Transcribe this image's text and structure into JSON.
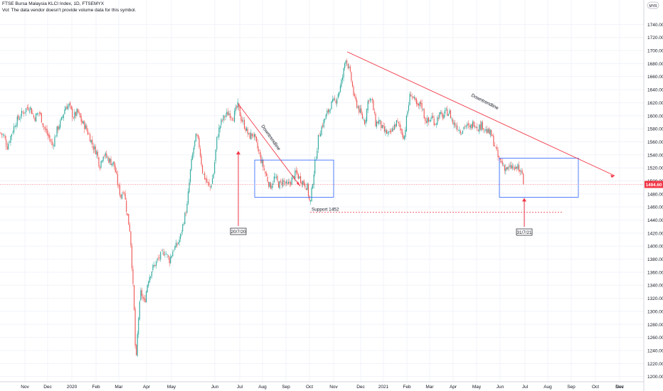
{
  "header": {
    "title": "FTSE Bursa Malaysia KLCI Index, 1D, FTSEMYX",
    "vol_note": "Vol: The data vendor doesn't provide volume data for this symbol."
  },
  "currency_badge": "MYR",
  "colors": {
    "up": "#26a69a",
    "down": "#ef5350",
    "drawing_red": "#f23645",
    "box_blue": "#2962ff",
    "price_line": "#f23645",
    "axis_text": "#131722",
    "grid": "#f0f3fa"
  },
  "chart_data": {
    "type": "candlestick",
    "instrument": "FTSE Bursa Malaysia KLCI Index",
    "interval": "1D",
    "y_axis": {
      "ylim": [
        1192,
        1760
      ],
      "ticks": [
        1200,
        1220,
        1240,
        1260,
        1280,
        1300,
        1320,
        1340,
        1360,
        1380,
        1400,
        1420,
        1440,
        1460,
        1480,
        1500,
        1520,
        1540,
        1560,
        1580,
        1600,
        1620,
        1640,
        1660,
        1680,
        1700,
        1720,
        1740
      ]
    },
    "x_axis": {
      "ticks": [
        "Nov",
        "Dec",
        "2020",
        "Feb",
        "Mar",
        "Apr",
        "May",
        "Jun",
        "Jul",
        "Aug",
        "Sep",
        "Oct",
        "Nov",
        "Dec",
        "2021",
        "Feb",
        "Mar",
        "Apr",
        "May",
        "Jun",
        "Jul",
        "Aug",
        "Sep",
        "Oct",
        "Nov",
        "Dec"
      ]
    },
    "last_price": "1494.60",
    "price_path": [
      [
        0,
        1574
      ],
      [
        6,
        1568
      ],
      [
        10,
        1552
      ],
      [
        16,
        1572
      ],
      [
        22,
        1590
      ],
      [
        30,
        1602
      ],
      [
        38,
        1612
      ],
      [
        42,
        1614
      ],
      [
        48,
        1596
      ],
      [
        55,
        1606
      ],
      [
        62,
        1582
      ],
      [
        68,
        1568
      ],
      [
        74,
        1554
      ],
      [
        80,
        1578
      ],
      [
        86,
        1592
      ],
      [
        92,
        1614
      ],
      [
        97,
        1616
      ],
      [
        103,
        1598
      ],
      [
        109,
        1606
      ],
      [
        115,
        1590
      ],
      [
        120,
        1583
      ],
      [
        126,
        1568
      ],
      [
        131,
        1552
      ],
      [
        136,
        1544
      ],
      [
        140,
        1522
      ],
      [
        145,
        1542
      ],
      [
        150,
        1536
      ],
      [
        155,
        1530
      ],
      [
        160,
        1526
      ],
      [
        163,
        1510
      ],
      [
        166,
        1492
      ],
      [
        170,
        1476
      ],
      [
        174,
        1490
      ],
      [
        177,
        1462
      ],
      [
        180,
        1440
      ],
      [
        183,
        1422
      ],
      [
        186,
        1360
      ],
      [
        189,
        1290
      ],
      [
        191,
        1212
      ],
      [
        194,
        1282
      ],
      [
        198,
        1330
      ],
      [
        203,
        1312
      ],
      [
        208,
        1348
      ],
      [
        214,
        1365
      ],
      [
        220,
        1376
      ],
      [
        226,
        1386
      ],
      [
        232,
        1392
      ],
      [
        238,
        1378
      ],
      [
        244,
        1396
      ],
      [
        248,
        1400
      ],
      [
        253,
        1412
      ],
      [
        258,
        1438
      ],
      [
        263,
        1462
      ],
      [
        268,
        1520
      ],
      [
        272,
        1550
      ],
      [
        276,
        1570
      ],
      [
        280,
        1554
      ],
      [
        285,
        1512
      ],
      [
        290,
        1500
      ],
      [
        295,
        1488
      ],
      [
        300,
        1510
      ],
      [
        305,
        1566
      ],
      [
        310,
        1588
      ],
      [
        316,
        1600
      ],
      [
        322,
        1604
      ],
      [
        328,
        1598
      ],
      [
        334,
        1616
      ],
      [
        339,
        1596
      ],
      [
        344,
        1584
      ],
      [
        350,
        1568
      ],
      [
        356,
        1572
      ],
      [
        362,
        1550
      ],
      [
        368,
        1528
      ],
      [
        374,
        1508
      ],
      [
        380,
        1490
      ],
      [
        386,
        1506
      ],
      [
        392,
        1494
      ],
      [
        398,
        1500
      ],
      [
        404,
        1492
      ],
      [
        410,
        1502
      ],
      [
        416,
        1512
      ],
      [
        420,
        1506
      ],
      [
        426,
        1498
      ],
      [
        432,
        1490
      ],
      [
        436,
        1462
      ],
      [
        440,
        1504
      ],
      [
        444,
        1536
      ],
      [
        448,
        1570
      ],
      [
        454,
        1588
      ],
      [
        460,
        1604
      ],
      [
        466,
        1618
      ],
      [
        472,
        1624
      ],
      [
        478,
        1642
      ],
      [
        482,
        1662
      ],
      [
        486,
        1690
      ],
      [
        490,
        1674
      ],
      [
        494,
        1654
      ],
      [
        498,
        1626
      ],
      [
        503,
        1614
      ],
      [
        508,
        1600
      ],
      [
        513,
        1590
      ],
      [
        518,
        1628
      ],
      [
        523,
        1622
      ],
      [
        528,
        1588
      ],
      [
        533,
        1592
      ],
      [
        538,
        1578
      ],
      [
        543,
        1574
      ],
      [
        548,
        1570
      ],
      [
        553,
        1582
      ],
      [
        558,
        1590
      ],
      [
        563,
        1580
      ],
      [
        568,
        1566
      ],
      [
        572,
        1600
      ],
      [
        577,
        1636
      ],
      [
        582,
        1624
      ],
      [
        587,
        1612
      ],
      [
        592,
        1620
      ],
      [
        597,
        1596
      ],
      [
        602,
        1590
      ],
      [
        607,
        1598
      ],
      [
        612,
        1588
      ],
      [
        617,
        1602
      ],
      [
        622,
        1598
      ],
      [
        627,
        1606
      ],
      [
        632,
        1604
      ],
      [
        637,
        1588
      ],
      [
        642,
        1584
      ],
      [
        648,
        1576
      ],
      [
        654,
        1586
      ],
      [
        660,
        1580
      ],
      [
        666,
        1590
      ],
      [
        672,
        1582
      ],
      [
        678,
        1586
      ],
      [
        684,
        1576
      ],
      [
        690,
        1572
      ],
      [
        695,
        1556
      ],
      [
        700,
        1536
      ],
      [
        705,
        1528
      ],
      [
        710,
        1520
      ],
      [
        715,
        1518
      ],
      [
        720,
        1522
      ],
      [
        725,
        1516
      ],
      [
        728,
        1524
      ],
      [
        731,
        1510
      ],
      [
        734,
        1512
      ],
      [
        737,
        1494.6
      ]
    ],
    "annotations": {
      "downtrend_short_label": "Downtrendline",
      "downtrend_long_label": "Downtrendline",
      "support_label": "Support 1452",
      "support_level": 1452,
      "arrow_labels": [
        "20/7/20",
        "31/7/21"
      ]
    }
  }
}
